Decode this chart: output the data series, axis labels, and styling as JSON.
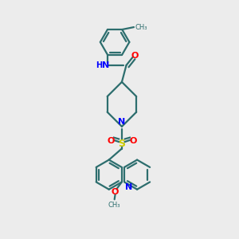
{
  "bg_color": "#ececec",
  "bond_color": "#2d6e6e",
  "nitrogen_color": "#0000ff",
  "oxygen_color": "#ff0000",
  "sulfur_color": "#cccc00",
  "line_width": 1.6,
  "figsize": [
    3.0,
    3.0
  ],
  "dpi": 100,
  "xlim": [
    0,
    10
  ],
  "ylim": [
    0,
    10
  ]
}
